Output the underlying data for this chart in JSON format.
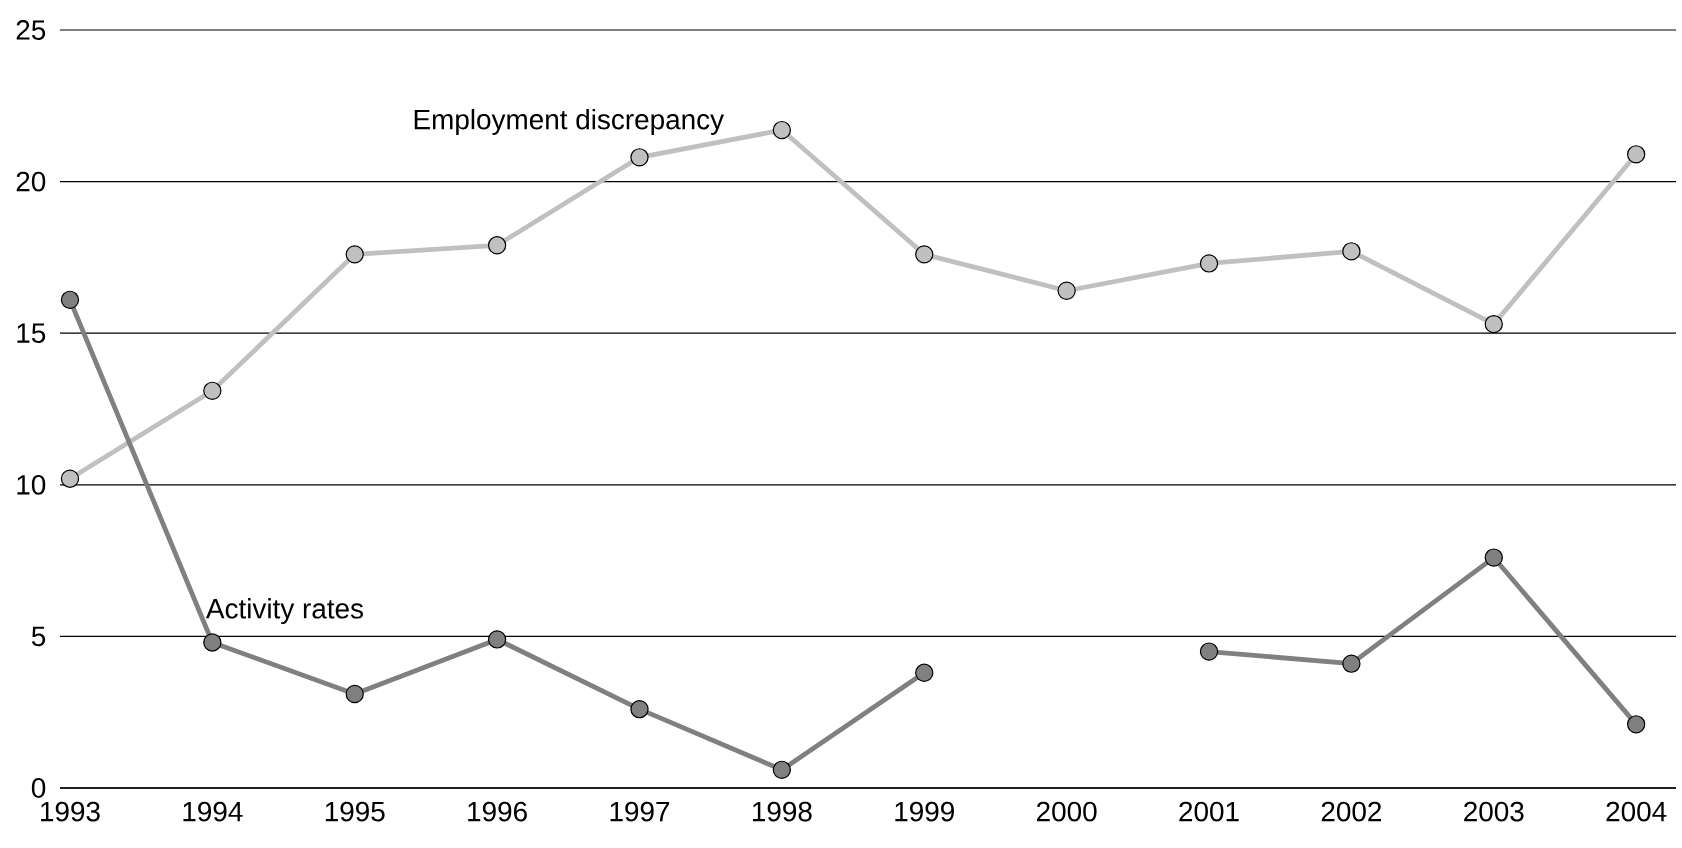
{
  "chart_data": {
    "type": "line",
    "categories": [
      "1993",
      "1994",
      "1995",
      "1996",
      "1997",
      "1998",
      "1999",
      "2000",
      "2001",
      "2002",
      "2003",
      "2004"
    ],
    "series": [
      {
        "name": "Employment discrepancy",
        "color": "#c0c0c0",
        "values": [
          10.2,
          13.1,
          17.6,
          17.9,
          20.8,
          21.7,
          17.6,
          16.4,
          17.3,
          17.7,
          15.3,
          20.9
        ]
      },
      {
        "name": "Activity rates",
        "color": "#808080",
        "values": [
          16.1,
          4.8,
          3.1,
          4.9,
          2.6,
          0.6,
          3.8,
          null,
          4.5,
          4.1,
          7.6,
          2.1
        ]
      }
    ],
    "ylim": [
      0,
      25
    ],
    "yticks": [
      0,
      5,
      10,
      15,
      20,
      25
    ],
    "grid": "y",
    "legend": false,
    "marker": "circle",
    "line_style": "solid"
  }
}
